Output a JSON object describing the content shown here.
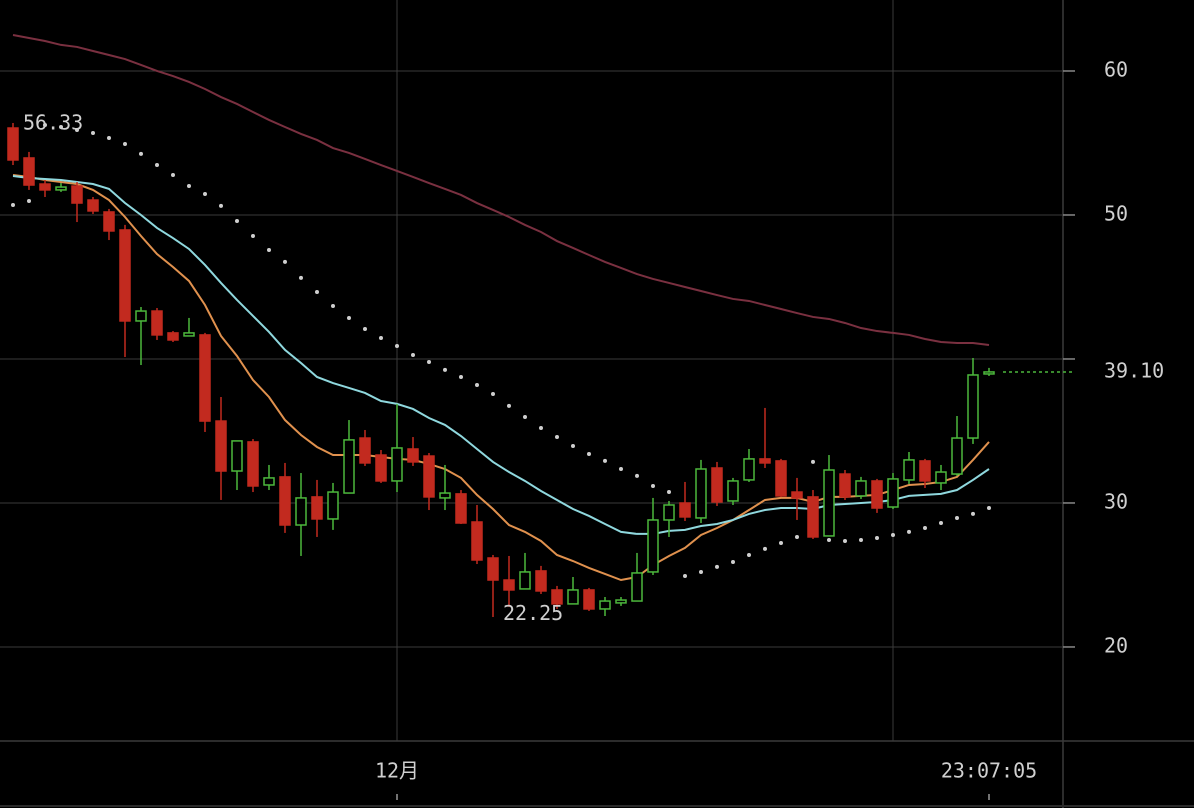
{
  "chart_data": {
    "type": "candlestick",
    "categories": [
      null,
      null,
      null,
      null,
      null,
      null,
      null,
      null,
      null,
      null,
      null,
      null,
      null,
      null,
      null,
      null,
      null,
      null,
      null,
      null,
      null,
      null,
      null,
      null,
      "12月",
      null,
      null,
      null,
      null,
      null,
      null,
      null,
      null,
      null,
      null,
      null,
      null,
      null,
      null,
      null,
      null,
      null,
      null,
      null,
      null,
      null,
      null,
      null,
      null,
      null,
      null,
      null,
      null,
      null,
      null,
      null,
      null,
      null,
      null,
      null,
      null,
      "23:07:05"
    ],
    "open": [
      56.04,
      53.96,
      52.15,
      51.74,
      52.01,
      51.04,
      50.21,
      48.96,
      42.64,
      43.33,
      41.81,
      41.6,
      41.67,
      35.69,
      32.22,
      34.24,
      31.25,
      31.81,
      28.47,
      30.42,
      28.89,
      30.69,
      34.51,
      33.33,
      31.53,
      33.75,
      33.26,
      30.35,
      30.63,
      28.68,
      26.18,
      24.65,
      24.03,
      25.28,
      23.96,
      22.99,
      23.96,
      22.64,
      23.06,
      23.19,
      25.21,
      28.82,
      30.0,
      28.96,
      32.43,
      30.14,
      31.6,
      33.06,
      32.92,
      30.76,
      30.42,
      27.71,
      32.01,
      30.49,
      31.53,
      29.72,
      31.6,
      32.92,
      31.39,
      32.01,
      34.51,
      38.96
    ],
    "high": [
      56.39,
      54.38,
      52.43,
      52.22,
      52.29,
      51.25,
      50.42,
      49.31,
      43.61,
      43.54,
      41.94,
      42.85,
      41.81,
      37.36,
      34.31,
      34.44,
      32.64,
      32.78,
      32.08,
      31.6,
      31.39,
      35.76,
      35.07,
      33.68,
      36.88,
      34.58,
      33.47,
      32.64,
      30.9,
      29.86,
      26.39,
      26.32,
      26.53,
      25.63,
      24.24,
      24.86,
      24.1,
      23.47,
      23.47,
      26.53,
      30.35,
      30.14,
      31.46,
      32.99,
      32.85,
      31.74,
      33.75,
      36.6,
      33.06,
      31.74,
      30.9,
      33.33,
      32.29,
      31.81,
      31.67,
      32.08,
      33.54,
      33.06,
      32.64,
      36.04,
      40.07,
      39.38
    ],
    "low": [
      53.47,
      51.74,
      51.25,
      51.6,
      49.51,
      50.07,
      48.26,
      40.14,
      39.58,
      41.32,
      41.18,
      41.6,
      34.93,
      30.21,
      30.9,
      30.76,
      30.9,
      27.92,
      26.32,
      27.64,
      28.13,
      30.69,
      32.57,
      31.39,
      30.76,
      32.57,
      29.51,
      29.51,
      28.54,
      25.76,
      22.08,
      22.78,
      24.03,
      23.68,
      22.64,
      22.99,
      22.5,
      22.15,
      22.85,
      23.19,
      25.0,
      27.64,
      28.75,
      28.61,
      29.79,
      29.86,
      31.46,
      32.43,
      30.42,
      28.82,
      27.5,
      27.71,
      30.21,
      30.28,
      29.31,
      29.58,
      31.32,
      31.04,
      30.9,
      31.88,
      34.1,
      38.82
    ],
    "close": [
      53.82,
      52.08,
      51.74,
      51.94,
      50.83,
      50.28,
      48.89,
      42.64,
      43.33,
      41.67,
      41.32,
      41.81,
      35.69,
      32.22,
      34.31,
      31.18,
      31.74,
      28.47,
      30.35,
      28.89,
      30.76,
      34.38,
      32.78,
      31.53,
      33.82,
      32.85,
      30.42,
      30.69,
      28.61,
      26.04,
      24.65,
      23.96,
      25.21,
      23.89,
      22.99,
      23.96,
      22.64,
      23.19,
      23.26,
      25.14,
      28.82,
      29.86,
      29.03,
      32.36,
      30.07,
      31.53,
      33.06,
      32.78,
      30.49,
      30.35,
      27.64,
      32.29,
      30.42,
      31.53,
      29.65,
      31.67,
      32.99,
      31.53,
      32.15,
      34.51,
      38.89,
      39.1
    ],
    "up_color": "#4cb83c",
    "down_color": "#c22a1f",
    "lines": [
      {
        "color": "#e0914e",
        "values": [
          52.78,
          52.64,
          52.43,
          52.29,
          52.15,
          51.74,
          51.04,
          49.86,
          48.54,
          47.29,
          46.39,
          45.42,
          43.75,
          41.6,
          40.21,
          38.54,
          37.36,
          35.76,
          34.72,
          33.89,
          33.33,
          33.33,
          33.33,
          33.19,
          33.06,
          32.99,
          32.71,
          32.36,
          31.74,
          30.56,
          29.58,
          28.47,
          27.99,
          27.36,
          26.39,
          25.97,
          25.49,
          25.07,
          24.65,
          24.86,
          25.69,
          26.32,
          26.88,
          27.78,
          28.26,
          28.82,
          29.51,
          30.21,
          30.35,
          30.35,
          30.07,
          30.42,
          30.42,
          30.49,
          30.56,
          30.9,
          31.25,
          31.32,
          31.46,
          31.81,
          32.99,
          34.24
        ]
      },
      {
        "color": "#8fd8de",
        "values": [
          52.71,
          52.57,
          52.5,
          52.43,
          52.29,
          52.15,
          51.81,
          50.83,
          50.0,
          49.1,
          48.4,
          47.64,
          46.53,
          45.28,
          44.1,
          42.99,
          41.88,
          40.63,
          39.72,
          38.75,
          38.33,
          37.99,
          37.64,
          37.08,
          36.88,
          36.53,
          35.9,
          35.42,
          34.65,
          33.75,
          32.85,
          32.15,
          31.53,
          30.83,
          30.21,
          29.58,
          29.1,
          28.54,
          27.99,
          27.85,
          27.85,
          28.06,
          28.13,
          28.4,
          28.54,
          28.82,
          29.24,
          29.51,
          29.65,
          29.65,
          29.58,
          29.86,
          29.93,
          30.0,
          30.07,
          30.21,
          30.49,
          30.56,
          30.63,
          30.9,
          31.6,
          32.36
        ]
      },
      {
        "color": "#7a3040",
        "values": [
          62.5,
          62.29,
          62.08,
          61.81,
          61.67,
          61.39,
          61.11,
          60.83,
          60.42,
          60.0,
          59.65,
          59.24,
          58.75,
          58.19,
          57.71,
          57.15,
          56.6,
          56.11,
          55.63,
          55.21,
          54.65,
          54.31,
          53.89,
          53.47,
          53.06,
          52.64,
          52.22,
          51.81,
          51.39,
          50.83,
          50.35,
          49.86,
          49.31,
          48.82,
          48.19,
          47.71,
          47.22,
          46.74,
          46.32,
          45.9,
          45.56,
          45.28,
          45.0,
          44.72,
          44.44,
          44.17,
          44.03,
          43.75,
          43.47,
          43.19,
          42.92,
          42.78,
          42.5,
          42.15,
          41.94,
          41.81,
          41.67,
          41.39,
          41.18,
          41.11,
          41.11,
          40.97
        ]
      }
    ],
    "sar": {
      "color": "#cfcfcf",
      "values": [
        50.69,
        50.97,
        56.25,
        56.11,
        55.9,
        55.69,
        55.35,
        54.93,
        54.24,
        53.47,
        52.78,
        52.01,
        51.46,
        50.63,
        49.58,
        48.54,
        47.57,
        46.74,
        45.63,
        44.65,
        43.68,
        42.85,
        42.08,
        41.46,
        40.9,
        40.28,
        39.79,
        39.24,
        38.75,
        38.19,
        37.57,
        36.74,
        35.97,
        35.21,
        34.58,
        33.96,
        33.4,
        32.92,
        32.36,
        31.88,
        31.18,
        30.76,
        24.93,
        25.21,
        25.56,
        25.9,
        26.39,
        26.81,
        27.22,
        27.64,
        32.85,
        27.43,
        27.36,
        27.43,
        27.57,
        27.78,
        27.99,
        28.26,
        28.61,
        28.96,
        29.24,
        29.65
      ]
    },
    "high_label": 56.33,
    "low_label": 22.25,
    "last_price": {
      "value": 39.1,
      "label": "39.10"
    },
    "ylim": [
      13.47,
      64.93
    ],
    "yticks": [
      20,
      30,
      50,
      60
    ],
    "ygrid": [
      20,
      30,
      40,
      50,
      60
    ],
    "grid": true
  }
}
